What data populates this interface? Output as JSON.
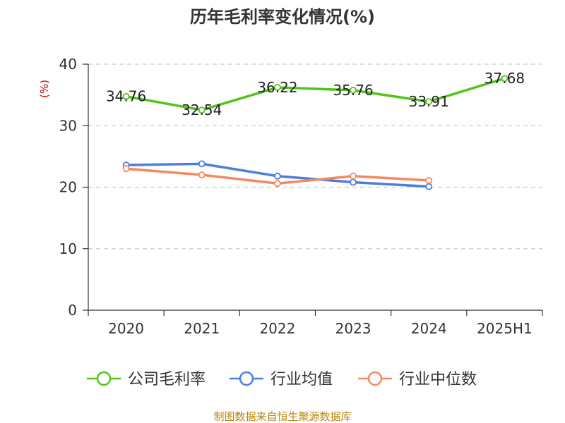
{
  "title": "历年毛利率变化情况(%)",
  "source_text": "制图数据来自恒生聚源数据库",
  "chart_data": {
    "type": "line",
    "title": "历年毛利率变化情况(%)",
    "xlabel": "",
    "ylabel": "(%)",
    "categories": [
      "2020",
      "2021",
      "2022",
      "2023",
      "2024",
      "2025H1"
    ],
    "ylim": [
      0,
      40
    ],
    "yticks": [
      0,
      10,
      20,
      30,
      40
    ],
    "grid": true,
    "legend_position": "bottom",
    "series": [
      {
        "name": "公司毛利率",
        "color": "#52c41a",
        "values": [
          34.76,
          32.54,
          36.22,
          35.76,
          33.91,
          37.68
        ],
        "labels": [
          "34.76",
          "32.54",
          "36.22",
          "35.76",
          "33.91",
          "37.68"
        ]
      },
      {
        "name": "行业均值",
        "color": "#4a7fdc",
        "values": [
          23.6,
          23.8,
          21.8,
          20.8,
          20.1,
          null
        ]
      },
      {
        "name": "行业中位数",
        "color": "#f4895f",
        "values": [
          23.0,
          22.0,
          20.6,
          21.8,
          21.1,
          null
        ]
      }
    ]
  }
}
